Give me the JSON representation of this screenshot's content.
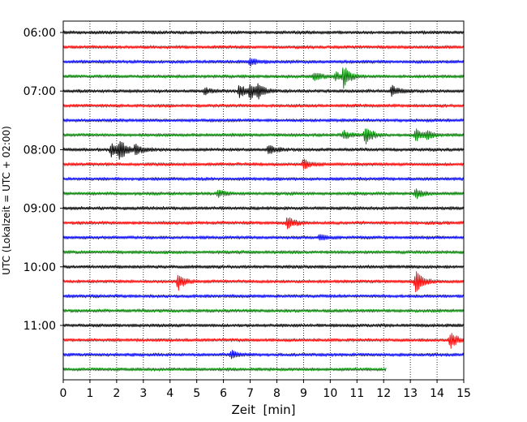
{
  "chart_data": {
    "type": "line",
    "xlabel": "Zeit  [min]",
    "ylabel": "UTC (Lokalzeit = UTC + 02:00)",
    "xlim": [
      0,
      15
    ],
    "x_ticks": [
      0,
      1,
      2,
      3,
      4,
      5,
      6,
      7,
      8,
      9,
      10,
      11,
      12,
      13,
      14,
      15
    ],
    "y_tick_labels": [
      "06:00",
      "07:00",
      "08:00",
      "09:00",
      "10:00",
      "11:00"
    ],
    "y_tick_rows": [
      0,
      4,
      8,
      12,
      16,
      20
    ],
    "grid": "vertical dotted",
    "row_minutes": 15,
    "row_start": "06:00",
    "row_colors": [
      "#000000",
      "#ff0000",
      "#0000ff",
      "#008000"
    ],
    "last_row_end_min": 12.1,
    "series": [
      {
        "row": 0,
        "start": "06:00",
        "color": "#000000",
        "events": []
      },
      {
        "row": 1,
        "start": "06:15",
        "color": "#ff0000",
        "events": []
      },
      {
        "row": 2,
        "start": "06:30",
        "color": "#0000ff",
        "events": [
          {
            "t": 7.0,
            "amp": 5
          }
        ]
      },
      {
        "row": 3,
        "start": "06:45",
        "color": "#008000",
        "events": [
          {
            "t": 9.4,
            "amp": 5
          },
          {
            "t": 10.2,
            "amp": 5
          },
          {
            "t": 10.5,
            "amp": 12
          }
        ]
      },
      {
        "row": 4,
        "start": "07:00",
        "color": "#000000",
        "events": [
          {
            "t": 5.3,
            "amp": 4
          },
          {
            "t": 6.6,
            "amp": 8
          },
          {
            "t": 7.0,
            "amp": 10
          },
          {
            "t": 7.3,
            "amp": 6
          },
          {
            "t": 12.3,
            "amp": 6
          }
        ]
      },
      {
        "row": 5,
        "start": "07:15",
        "color": "#ff0000",
        "events": []
      },
      {
        "row": 6,
        "start": "07:30",
        "color": "#0000ff",
        "events": []
      },
      {
        "row": 7,
        "start": "07:45",
        "color": "#008000",
        "events": [
          {
            "t": 10.5,
            "amp": 5
          },
          {
            "t": 11.3,
            "amp": 12
          },
          {
            "t": 13.2,
            "amp": 7
          },
          {
            "t": 13.6,
            "amp": 4
          }
        ]
      },
      {
        "row": 8,
        "start": "08:00",
        "color": "#000000",
        "events": [
          {
            "t": 1.8,
            "amp": 8
          },
          {
            "t": 2.1,
            "amp": 12
          },
          {
            "t": 2.7,
            "amp": 6
          },
          {
            "t": 7.7,
            "amp": 6
          }
        ]
      },
      {
        "row": 9,
        "start": "08:15",
        "color": "#ff0000",
        "events": [
          {
            "t": 9.0,
            "amp": 6
          }
        ]
      },
      {
        "row": 10,
        "start": "08:30",
        "color": "#0000ff",
        "events": []
      },
      {
        "row": 11,
        "start": "08:45",
        "color": "#008000",
        "events": [
          {
            "t": 5.8,
            "amp": 4
          },
          {
            "t": 13.2,
            "amp": 6
          }
        ]
      },
      {
        "row": 12,
        "start": "09:00",
        "color": "#000000",
        "events": []
      },
      {
        "row": 13,
        "start": "09:15",
        "color": "#ff0000",
        "events": [
          {
            "t": 8.4,
            "amp": 8
          }
        ]
      },
      {
        "row": 14,
        "start": "09:30",
        "color": "#0000ff",
        "events": [
          {
            "t": 9.6,
            "amp": 4
          }
        ]
      },
      {
        "row": 15,
        "start": "09:45",
        "color": "#008000",
        "events": []
      },
      {
        "row": 16,
        "start": "10:00",
        "color": "#000000",
        "events": []
      },
      {
        "row": 17,
        "start": "10:15",
        "color": "#ff0000",
        "events": [
          {
            "t": 4.3,
            "amp": 10
          },
          {
            "t": 13.2,
            "amp": 14
          }
        ]
      },
      {
        "row": 18,
        "start": "10:30",
        "color": "#0000ff",
        "events": []
      },
      {
        "row": 19,
        "start": "10:45",
        "color": "#008000",
        "events": []
      },
      {
        "row": 20,
        "start": "11:00",
        "color": "#000000",
        "events": []
      },
      {
        "row": 21,
        "start": "11:15",
        "color": "#ff0000",
        "events": [
          {
            "t": 14.5,
            "amp": 10
          }
        ]
      },
      {
        "row": 22,
        "start": "11:30",
        "color": "#0000ff",
        "events": [
          {
            "t": 6.3,
            "amp": 4
          }
        ]
      },
      {
        "row": 23,
        "start": "11:45",
        "color": "#008000",
        "events": []
      }
    ]
  }
}
